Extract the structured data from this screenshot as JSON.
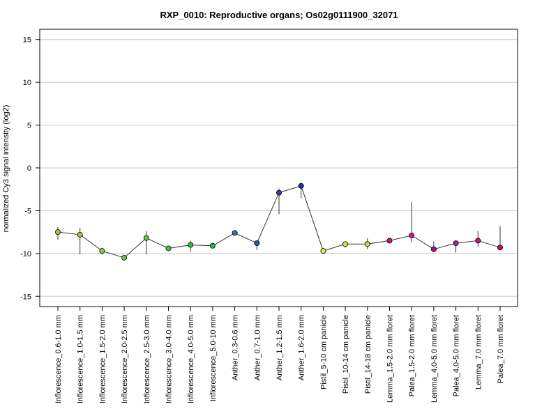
{
  "chart_data": {
    "type": "line",
    "title": "RXP_0010: Reproductive organs; Os02g0111900_32071",
    "xlabel": "",
    "ylabel": "normalized Cy3 signal intensity (log2)",
    "ylim": [
      -16.2,
      16.2
    ],
    "yticks": [
      -15,
      -10,
      -5,
      0,
      5,
      10,
      15
    ],
    "grid": "horizontal",
    "categories": [
      "Inflorescence_0.6-1.0 mm",
      "Inflorescence_1.0-1.5 mm",
      "Inflorescence_1.5-2.0 mm",
      "Inflorescence_2.0-2.5 mm",
      "Inflorescence_2.5-3.0 mm",
      "Inflorescence_3.0-4.0 mm",
      "Inflorescence_4.0-5.0 mm",
      "Inflorescence_5.0-10 mm",
      "Anther_0.3-0.6 mm",
      "Anther_0.7-1.0 mm",
      "Anther_1.2-1.5 mm",
      "Anther_1.6-2.0 mm",
      "Pistil_5-10 cm panicle",
      "Pistil_10-14 cm panicle",
      "Pistil_14-18 cm panicle",
      "Lemma_1.5-2.0 mm floret",
      "Palea_1.5-2.0 mm floret",
      "Lemma_4.0-5.0 mm floret",
      "Palea_4.0-5.0 mm floret",
      "Lemma_7.0 mm floret",
      "Palea_7.0 mm floret"
    ],
    "series": [
      {
        "values": [
          -7.5,
          -7.8,
          -9.7,
          -10.5,
          -8.2,
          -9.4,
          -9.0,
          -9.1,
          -7.6,
          -8.8,
          -2.9,
          -2.1,
          -9.7,
          -8.9,
          -8.9,
          -8.5,
          -7.9,
          -9.5,
          -8.8,
          -8.5,
          -9.3
        ],
        "error_low": [
          -8.4,
          -10.1,
          -10.1,
          -10.6,
          -10.1,
          -9.5,
          -9.8,
          -9.3,
          -7.7,
          -9.6,
          -5.4,
          -3.5,
          -9.9,
          -9.3,
          -9.5,
          -8.8,
          -8.7,
          -9.8,
          -9.9,
          -9.2,
          -9.4
        ],
        "error_high": [
          -6.9,
          -7.0,
          -9.4,
          -10.4,
          -7.4,
          -9.3,
          -8.5,
          -8.9,
          -7.5,
          -8.7,
          -2.4,
          -1.9,
          -9.6,
          -8.8,
          -8.2,
          -8.2,
          -4.0,
          -8.6,
          -8.6,
          -7.4,
          -6.8
        ],
        "point_colors": [
          "#9acd32",
          "#9acd32",
          "#7fd13b",
          "#66cc33",
          "#55cc33",
          "#44c444",
          "#33bb33",
          "#2db84d",
          "#3b6fb6",
          "#2f56a8",
          "#2a3fa0",
          "#2233a0",
          "#e8e84a",
          "#dde040",
          "#cfd63a",
          "#c71585",
          "#d0188f",
          "#b0107a",
          "#b81a86",
          "#c2187e",
          "#c0144f"
        ]
      }
    ]
  }
}
